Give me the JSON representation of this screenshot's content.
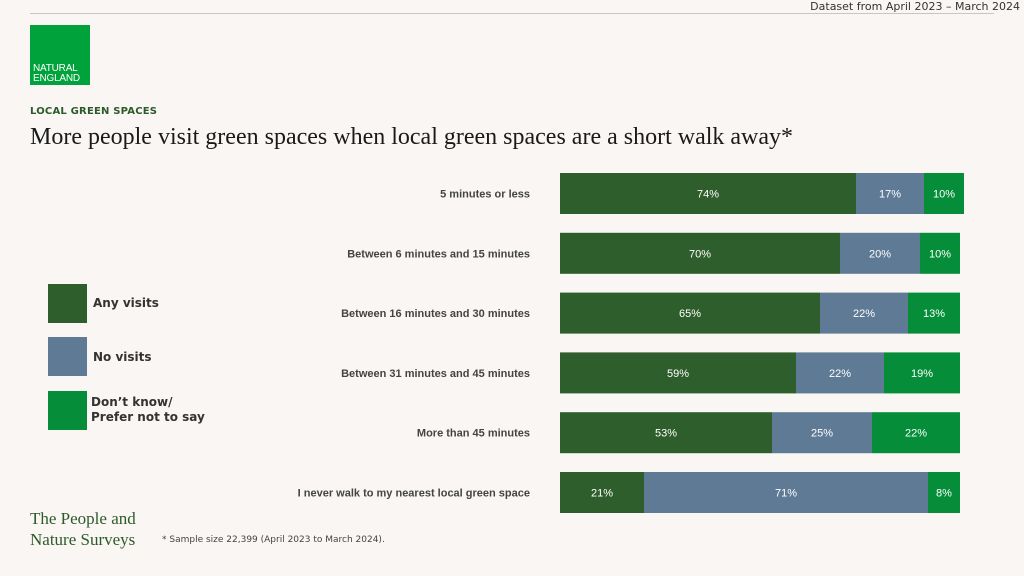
{
  "header": {
    "dataset_note": "Dataset from April 2023 – March 2024"
  },
  "logo": {
    "line1": "NATURAL",
    "line2": "ENGLAND"
  },
  "section_label": "LOCAL GREEN SPACES",
  "title": "More people visit green spaces when local green spaces are a short walk away*",
  "legend": [
    {
      "label": "Any visits",
      "color": "#2e5e2b"
    },
    {
      "label": "No visits",
      "color": "#5e7a94"
    },
    {
      "label": "Don’t know/\nPrefer not to say",
      "color": "#058d39"
    }
  ],
  "footer": {
    "brand_line1": "The People and",
    "brand_line2": "Nature Surveys",
    "footnote": "* Sample size 22,399 (April 2023 to March 2024)."
  },
  "chart_data": {
    "type": "bar",
    "orientation": "horizontal",
    "stacked": true,
    "categories": [
      "5 minutes or less",
      "Between 6 minutes and 15 minutes",
      "Between 16 minutes and 30 minutes",
      "Between 31 minutes and 45 minutes",
      "More than 45 minutes",
      "I never walk to my nearest local green space"
    ],
    "series": [
      {
        "name": "Any visits",
        "color": "#2e5e2b",
        "values": [
          74,
          70,
          65,
          59,
          53,
          21
        ],
        "labels": [
          "74%",
          "70%",
          "65%",
          "59%",
          "53%",
          "21%"
        ]
      },
      {
        "name": "No visits",
        "color": "#5e7a94",
        "values": [
          17,
          20,
          22,
          22,
          25,
          71
        ],
        "labels": [
          "17%",
          "20%",
          "22%",
          "22%",
          "25%",
          "71%"
        ]
      },
      {
        "name": "Don’t know/ Prefer not to say",
        "color": "#058d39",
        "values": [
          10,
          10,
          13,
          19,
          22,
          8
        ],
        "labels": [
          "10%",
          "10%",
          "13%",
          "19%",
          "22%",
          "8%"
        ]
      }
    ],
    "legend_position": "left",
    "grid": false
  }
}
